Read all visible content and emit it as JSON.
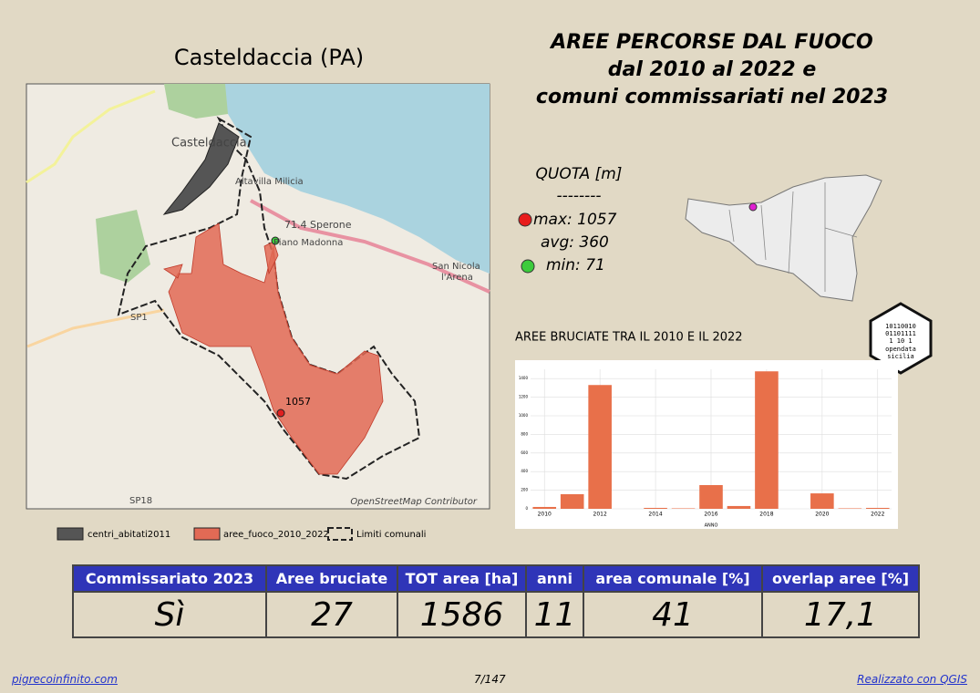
{
  "map": {
    "title": "Casteldaccia (PA)",
    "labels": [
      "Casteldaccia",
      "Altavilla Milicia",
      "71.4 Sperone",
      "Piano Madonna",
      "San Nicola",
      "l'Arena",
      "SP1",
      "SP18",
      "1057"
    ],
    "attribution": "OpenStreetMap Contributor"
  },
  "legend": [
    "centri_abitati2011",
    "aree_fuoco_2010_2022",
    "Limiti comunali"
  ],
  "header": {
    "title_lines": [
      "AREE PERCORSE DAL FUOCO",
      "dal 2010 al 2022 e",
      "comuni commissariati nel 2023"
    ]
  },
  "quota": {
    "title": "QUOTA [m]",
    "separator": "--------",
    "max": "max: 1057",
    "avg": "avg: 360",
    "min": "min: 71"
  },
  "logo": {
    "lines": [
      "10110010",
      "01101111",
      "1 10 1",
      "opendata",
      "sicilia"
    ]
  },
  "chart_data": {
    "type": "bar",
    "title": "AREE BRUCIATE TRA IL 2010 E IL 2022",
    "xlabel": "ANNO",
    "x": [
      2010,
      2011,
      2012,
      2013,
      2014,
      2015,
      2016,
      2017,
      2018,
      2019,
      2020,
      2021,
      2022
    ],
    "values": [
      20,
      157,
      1331,
      0,
      10,
      5,
      255,
      30,
      1478,
      0,
      166,
      5,
      10
    ],
    "color": "#e8704a",
    "xlim": [
      2009.5,
      2022.5
    ],
    "ylim": [
      0,
      1500
    ],
    "xticks": [
      2010,
      2012,
      2014,
      2016,
      2018,
      2020,
      2022
    ],
    "yticks": [
      0,
      200,
      400,
      600,
      800,
      1000,
      1200,
      1400
    ],
    "grid": true
  },
  "table": {
    "headers": [
      "Commissariato 2023",
      "Aree bruciate",
      "TOT area [ha]",
      "anni",
      "area comunale [%]",
      "overlap aree [%]"
    ],
    "rows": [
      [
        "Sì",
        27,
        1586,
        11,
        41,
        "17,1"
      ]
    ]
  },
  "footer": {
    "left": "pigrecoinfinito.com",
    "center": "7/147",
    "right": "Realizzato con QGIS"
  }
}
